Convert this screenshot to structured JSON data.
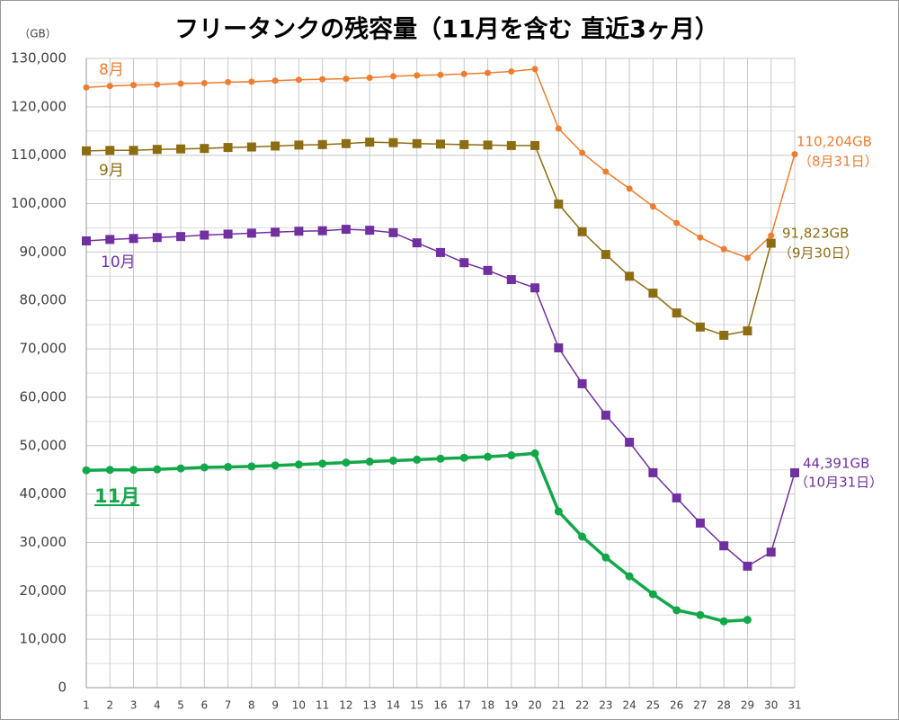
{
  "chart_data": {
    "type": "line",
    "title": "フリータンクの残容量（11月を含む 直近3ヶ月）",
    "y_label": "（GB）",
    "x": [
      1,
      2,
      3,
      4,
      5,
      6,
      7,
      8,
      9,
      10,
      11,
      12,
      13,
      14,
      15,
      16,
      17,
      18,
      19,
      20,
      21,
      22,
      23,
      24,
      25,
      26,
      27,
      28,
      29,
      30,
      31
    ],
    "xlim": [
      1,
      31
    ],
    "xticks": [
      1,
      2,
      3,
      4,
      5,
      6,
      7,
      8,
      9,
      10,
      11,
      12,
      13,
      14,
      15,
      16,
      17,
      18,
      19,
      20,
      21,
      22,
      23,
      24,
      25,
      26,
      27,
      28,
      29,
      30,
      31
    ],
    "ylim": [
      0,
      130000
    ],
    "yticks": [
      0,
      {
        "value": 10000,
        "label": "10,000"
      },
      {
        "value": 20000,
        "label": "20,000"
      },
      {
        "value": 30000,
        "label": "30,000"
      },
      {
        "value": 40000,
        "label": "40,000"
      },
      {
        "value": 50000,
        "label": "50,000"
      },
      {
        "value": 60000,
        "label": "60,000"
      },
      {
        "value": 70000,
        "label": "70,000"
      },
      {
        "value": 80000,
        "label": "80,000"
      },
      {
        "value": 90000,
        "label": "90,000"
      },
      {
        "value": 100000,
        "label": "100,000"
      },
      {
        "value": 110000,
        "label": "110,000"
      },
      {
        "value": 120000,
        "label": "120,000"
      },
      {
        "value": 130000,
        "label": "130,000"
      }
    ],
    "grid": true,
    "series": [
      {
        "name": "8月",
        "color": "#ed7d31",
        "marker": "circle",
        "line_width": 1.5,
        "values": [
          124000,
          124300,
          124500,
          124600,
          124800,
          124900,
          125100,
          125200,
          125400,
          125600,
          125700,
          125800,
          126000,
          126300,
          126500,
          126600,
          126800,
          127000,
          127300,
          127800,
          115500,
          110500,
          106600,
          103100,
          99400,
          96000,
          93000,
          90600,
          88800,
          93400,
          110204
        ]
      },
      {
        "name": "9月",
        "color": "#8c6d12",
        "marker": "square",
        "line_width": 1.5,
        "values": [
          110900,
          111000,
          111000,
          111200,
          111300,
          111400,
          111600,
          111700,
          111900,
          112100,
          112200,
          112400,
          112700,
          112600,
          112400,
          112300,
          112200,
          112100,
          112000,
          112000,
          99900,
          94200,
          89500,
          85000,
          81500,
          77400,
          74500,
          72800,
          73700,
          91823,
          null
        ]
      },
      {
        "name": "10月",
        "color": "#7030a0",
        "marker": "square",
        "line_width": 1.5,
        "values": [
          92300,
          92600,
          92800,
          93000,
          93200,
          93500,
          93700,
          93900,
          94100,
          94300,
          94400,
          94700,
          94500,
          94000,
          91900,
          89900,
          87800,
          86200,
          84300,
          82600,
          70200,
          62800,
          56300,
          50700,
          44400,
          39200,
          34000,
          29300,
          25100,
          28000,
          44391
        ]
      },
      {
        "name": "11月",
        "color": "#12a84a",
        "marker": "circle",
        "line_width": 3.5,
        "values": [
          44900,
          45000,
          45000,
          45100,
          45300,
          45500,
          45600,
          45700,
          45900,
          46100,
          46300,
          46500,
          46700,
          46900,
          47100,
          47300,
          47500,
          47700,
          48000,
          48400,
          36400,
          31200,
          26900,
          23000,
          19300,
          16000,
          15000,
          13700,
          14000,
          null,
          null
        ]
      }
    ],
    "annotations": [
      "110,204GB",
      "（8月31日）",
      "91,823GB",
      "（9月30日）",
      "44,391GB",
      "（10月31日）"
    ]
  }
}
